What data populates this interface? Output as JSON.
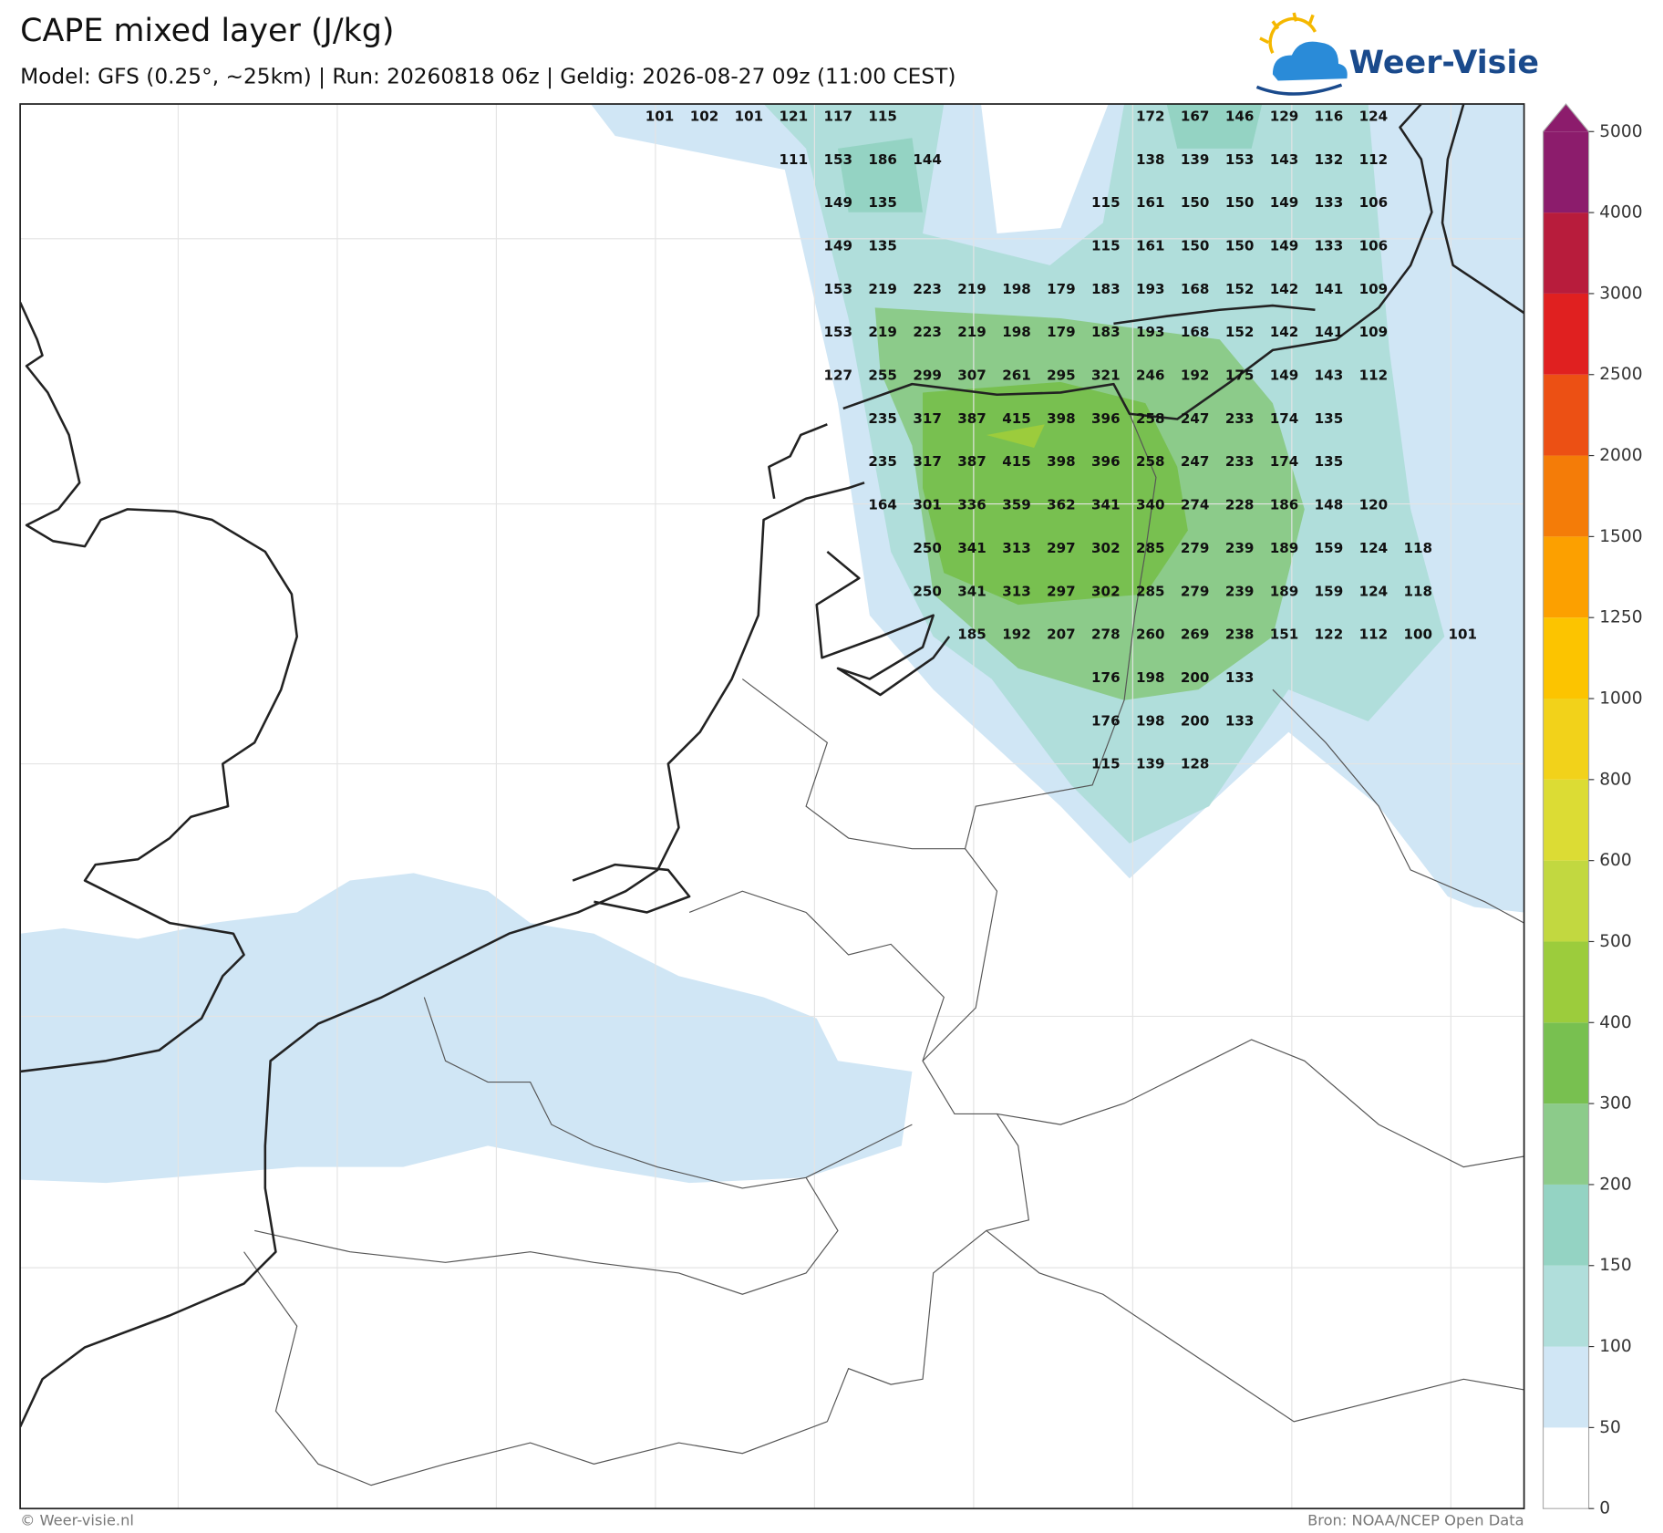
{
  "header": {
    "title": "CAPE mixed layer (J/kg)",
    "subtitle": "Model: GFS (0.25°, ~25km)  |  Run: 20260818 06z  |  Geldig: 2026-08-27 09z (11:00 CEST)"
  },
  "logo": "Weer-Visie",
  "colorbar": {
    "ticks": [
      0,
      50,
      100,
      150,
      200,
      300,
      400,
      500,
      600,
      800,
      1000,
      1250,
      1500,
      2000,
      2500,
      3000,
      4000,
      5000
    ],
    "colors": [
      "#ffffff",
      "#d0e6f5",
      "#b0dedb",
      "#94d3c3",
      "#8ccb8a",
      "#78c050",
      "#9ccc3c",
      "#c2d840",
      "#dcdc34",
      "#f2d21a",
      "#fcc400",
      "#fca000",
      "#f47c08",
      "#ec5014",
      "#e02020",
      "#b81c3c",
      "#8c1c6c"
    ],
    "extend_color": "#8c1c6c"
  },
  "map": {
    "value_rows": [
      [
        101,
        102,
        101,
        121,
        117,
        115,
        null,
        null,
        null,
        null,
        null,
        172,
        167,
        146,
        129,
        116,
        124,
        null,
        null
      ],
      [
        null,
        null,
        null,
        111,
        153,
        186,
        144,
        null,
        null,
        null,
        null,
        138,
        139,
        153,
        143,
        132,
        112,
        null,
        null
      ],
      [
        null,
        null,
        null,
        null,
        149,
        135,
        null,
        null,
        null,
        null,
        115,
        161,
        150,
        150,
        149,
        133,
        106,
        null,
        null
      ],
      [
        null,
        null,
        null,
        null,
        149,
        135,
        null,
        null,
        null,
        null,
        115,
        161,
        150,
        150,
        149,
        133,
        106,
        null,
        null
      ],
      [
        null,
        null,
        null,
        null,
        153,
        219,
        223,
        219,
        198,
        179,
        183,
        193,
        168,
        152,
        142,
        141,
        109,
        null,
        null
      ],
      [
        null,
        null,
        null,
        null,
        153,
        219,
        223,
        219,
        198,
        179,
        183,
        193,
        168,
        152,
        142,
        141,
        109,
        null,
        null
      ],
      [
        null,
        null,
        null,
        null,
        127,
        255,
        299,
        307,
        261,
        295,
        321,
        246,
        192,
        175,
        149,
        143,
        112,
        null,
        null
      ],
      [
        null,
        null,
        null,
        null,
        null,
        235,
        317,
        387,
        415,
        398,
        396,
        258,
        247,
        233,
        174,
        135,
        null,
        null,
        null
      ],
      [
        null,
        null,
        null,
        null,
        null,
        235,
        317,
        387,
        415,
        398,
        396,
        258,
        247,
        233,
        174,
        135,
        null,
        null,
        null
      ],
      [
        null,
        null,
        null,
        null,
        null,
        164,
        301,
        336,
        359,
        362,
        341,
        340,
        274,
        228,
        186,
        148,
        120,
        null,
        null
      ],
      [
        null,
        null,
        null,
        null,
        null,
        null,
        250,
        341,
        313,
        297,
        302,
        285,
        279,
        239,
        189,
        159,
        124,
        118,
        null
      ],
      [
        null,
        null,
        null,
        null,
        null,
        null,
        250,
        341,
        313,
        297,
        302,
        285,
        279,
        239,
        189,
        159,
        124,
        118,
        null
      ],
      [
        null,
        null,
        null,
        null,
        null,
        null,
        null,
        185,
        192,
        207,
        278,
        260,
        269,
        238,
        151,
        122,
        112,
        100,
        101
      ],
      [
        null,
        null,
        null,
        null,
        null,
        null,
        null,
        null,
        null,
        null,
        176,
        198,
        200,
        133,
        null,
        null,
        null,
        null,
        null
      ],
      [
        null,
        null,
        null,
        null,
        null,
        null,
        null,
        null,
        null,
        null,
        176,
        198,
        200,
        133,
        null,
        null,
        null,
        null,
        null
      ],
      [
        null,
        null,
        null,
        null,
        null,
        null,
        null,
        null,
        null,
        null,
        115,
        139,
        128,
        null,
        null,
        null,
        null,
        null,
        null
      ]
    ]
  },
  "footer": {
    "left": "© Weer-visie.nl",
    "right": "Bron: NOAA/NCEP Open Data"
  }
}
